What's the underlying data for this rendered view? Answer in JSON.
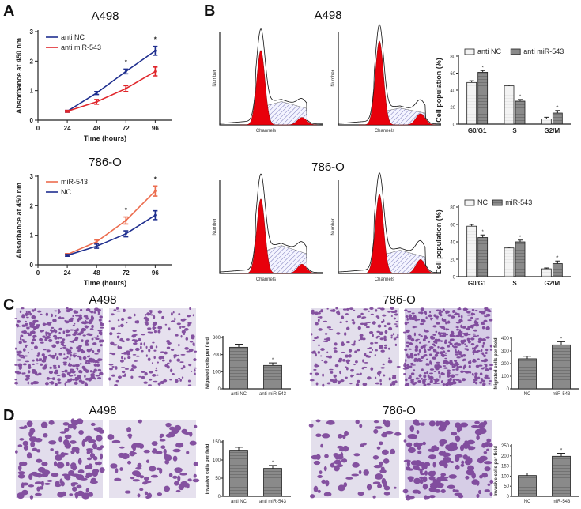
{
  "panels": {
    "A": "A",
    "B": "B",
    "C": "C",
    "D": "D"
  },
  "colors": {
    "blue": "#1f2f8f",
    "red": "#e0262b",
    "orange": "#ec6d4f",
    "hist_red": "#e8000b",
    "bar_light": "#eeeeee",
    "bar_dark": "#777777",
    "stain": "#6b2d8c"
  },
  "flow": {
    "titles": [
      "A498",
      "786-O"
    ],
    "xlabel": "Channels",
    "ylabel": "Number"
  },
  "micrographs": {
    "C": {
      "titles": [
        "A498",
        "786-O"
      ]
    },
    "D": {
      "titles": [
        "A498",
        "786-O"
      ]
    }
  },
  "chart_data": [
    {
      "id": "A_A498",
      "type": "line",
      "title": "A498",
      "xlabel": "Time (hours)",
      "ylabel": "Absorbance at 450 nm",
      "x": [
        24,
        48,
        72,
        96
      ],
      "xticks": [
        0,
        24,
        48,
        72,
        96
      ],
      "yticks": [
        0,
        1,
        2,
        3
      ],
      "xlim": [
        0,
        110
      ],
      "ylim": [
        0,
        3
      ],
      "series": [
        {
          "name": "anti NC",
          "color": "#1f2f8f",
          "values": [
            0.3,
            0.92,
            1.65,
            2.35
          ],
          "errors": [
            0.03,
            0.05,
            0.08,
            0.15
          ]
        },
        {
          "name": "anti miR-543",
          "color": "#e0262b",
          "values": [
            0.3,
            0.62,
            1.07,
            1.65
          ],
          "errors": [
            0.03,
            0.08,
            0.1,
            0.15
          ]
        }
      ],
      "significance": [
        {
          "x": 72,
          "label": "*"
        },
        {
          "x": 96,
          "label": "*"
        }
      ]
    },
    {
      "id": "A_786O",
      "type": "line",
      "title": "786-O",
      "xlabel": "Time (hours)",
      "ylabel": "Absorbance at 450 nm",
      "x": [
        24,
        48,
        72,
        96
      ],
      "xticks": [
        0,
        24,
        48,
        72,
        96
      ],
      "yticks": [
        0,
        1,
        2,
        3
      ],
      "xlim": [
        0,
        110
      ],
      "ylim": [
        0,
        3
      ],
      "series": [
        {
          "name": "miR-543",
          "color": "#ec6d4f",
          "values": [
            0.35,
            0.78,
            1.5,
            2.5
          ],
          "errors": [
            0.03,
            0.06,
            0.12,
            0.17
          ]
        },
        {
          "name": "NC",
          "color": "#1f2f8f",
          "values": [
            0.32,
            0.63,
            1.05,
            1.68
          ],
          "errors": [
            0.03,
            0.07,
            0.1,
            0.15
          ]
        }
      ],
      "significance": [
        {
          "x": 72,
          "label": "*"
        },
        {
          "x": 96,
          "label": "*"
        }
      ]
    },
    {
      "id": "B_A498",
      "type": "bar",
      "ylabel": "Cell population (%)",
      "categories": [
        "G0/G1",
        "S",
        "G2/M"
      ],
      "ylim": [
        0,
        80
      ],
      "yticks": [
        0,
        20,
        40,
        60,
        80
      ],
      "legend": "top",
      "series": [
        {
          "name": "anti NC",
          "values": [
            49,
            45,
            6
          ],
          "errors": [
            2,
            1,
            2
          ]
        },
        {
          "name": "anti miR-543",
          "values": [
            61,
            27,
            13
          ],
          "errors": [
            2,
            2,
            3
          ]
        }
      ],
      "significance": [
        "*",
        "*",
        "*"
      ]
    },
    {
      "id": "B_786O",
      "type": "bar",
      "ylabel": "Cell population (%)",
      "categories": [
        "G0/G1",
        "S",
        "G2/M"
      ],
      "ylim": [
        0,
        80
      ],
      "yticks": [
        0,
        20,
        40,
        60,
        80
      ],
      "legend": "top",
      "series": [
        {
          "name": "NC",
          "values": [
            58,
            33,
            9
          ],
          "errors": [
            2,
            1,
            1
          ]
        },
        {
          "name": "miR-543",
          "values": [
            45,
            40,
            15
          ],
          "errors": [
            3,
            2,
            3
          ]
        }
      ],
      "significance": [
        "*",
        "*",
        "*"
      ]
    },
    {
      "id": "C_A498",
      "type": "bar",
      "ylabel": "Migrated cells per field",
      "categories": [
        "anti NC",
        "anti miR-543"
      ],
      "values": [
        243,
        137
      ],
      "errors": [
        18,
        15
      ],
      "ylim": [
        0,
        300
      ],
      "yticks": [
        0,
        100,
        200,
        300
      ],
      "significance": [
        "",
        "*"
      ]
    },
    {
      "id": "C_786O",
      "type": "bar",
      "ylabel": "Migrated cells per field",
      "categories": [
        "NC",
        "miR-543"
      ],
      "values": [
        238,
        348
      ],
      "errors": [
        20,
        25
      ],
      "ylim": [
        0,
        400
      ],
      "yticks": [
        0,
        100,
        200,
        300,
        400
      ],
      "significance": [
        "",
        "*"
      ]
    },
    {
      "id": "D_A498",
      "type": "bar",
      "ylabel": "Invasive cells per field",
      "categories": [
        "anti NC",
        "anti miR-543"
      ],
      "values": [
        127,
        77
      ],
      "errors": [
        8,
        8
      ],
      "ylim": [
        0,
        150
      ],
      "yticks": [
        0,
        50,
        100,
        150
      ],
      "significance": [
        "",
        "*"
      ]
    },
    {
      "id": "D_786O",
      "type": "bar",
      "ylabel": "Invasive cells per field",
      "categories": [
        "NC",
        "miR-543"
      ],
      "values": [
        103,
        198
      ],
      "errors": [
        12,
        15
      ],
      "ylim": [
        0,
        250
      ],
      "yticks": [
        0,
        50,
        100,
        150,
        200,
        250
      ],
      "significance": [
        "",
        "*"
      ]
    }
  ]
}
